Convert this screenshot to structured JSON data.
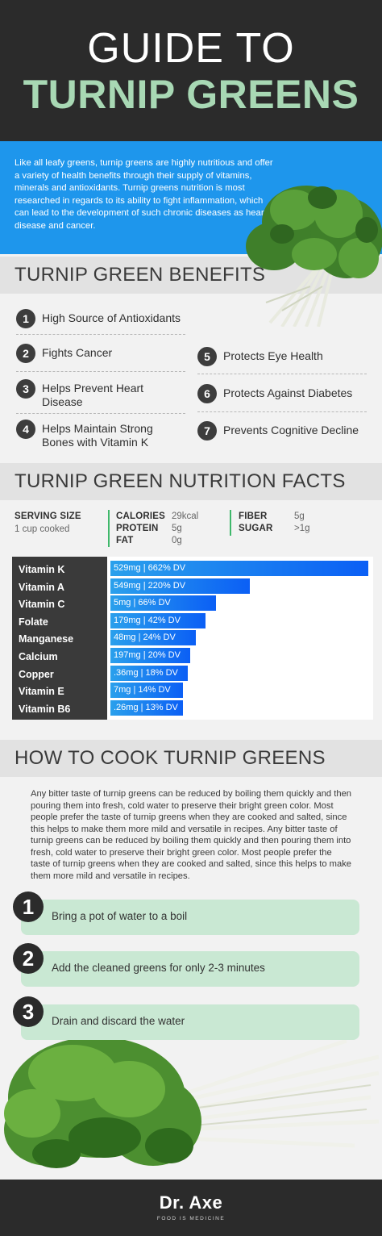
{
  "header": {
    "line1": "GUIDE TO",
    "line2": "TURNIP GREENS"
  },
  "intro": {
    "text": "Like all leafy greens, turnip greens are highly nutritious and offer a variety of health benefits through their supply of vitamins, minerals and antioxidants. Turnip greens nutrition is most researched in regards to its ability to fight inflammation, which can lead to the development of such chronic diseases as heart disease and cancer."
  },
  "benefits": {
    "title": "TURNIP GREEN BENEFITS",
    "items": [
      {
        "num": "1",
        "label": "High Source of Antioxidants"
      },
      {
        "num": "2",
        "label": "Fights Cancer"
      },
      {
        "num": "3",
        "label": "Helps Prevent Heart Disease"
      },
      {
        "num": "4",
        "label": "Helps Maintain Strong Bones with Vitamin K"
      },
      {
        "num": "5",
        "label": "Protects Eye Health"
      },
      {
        "num": "6",
        "label": "Protects Against Diabetes"
      },
      {
        "num": "7",
        "label": "Prevents Cognitive Decline"
      }
    ]
  },
  "nutrition": {
    "title": "TURNIP GREEN NUTRITION FACTS",
    "serving_label": "SERVING SIZE",
    "serving_value": "1 cup cooked",
    "facts": [
      {
        "label": "CALORIES",
        "value": "29kcal"
      },
      {
        "label": "PROTEIN",
        "value": "5g"
      },
      {
        "label": "FAT",
        "value": "0g"
      },
      {
        "label": "FIBER",
        "value": "5g"
      },
      {
        "label": "SUGAR",
        "value": ">1g"
      }
    ]
  },
  "chart_data": {
    "type": "bar",
    "orientation": "horizontal",
    "categories": [
      "Vitamin K",
      "Vitamin A",
      "Vitamin C",
      "Folate",
      "Manganese",
      "Calcium",
      "Copper",
      "Vitamin E",
      "Vitamin B6"
    ],
    "values": [
      662,
      220,
      66,
      42,
      24,
      20,
      18,
      14,
      13
    ],
    "bar_labels": [
      "529mg | 662% DV",
      "549mg | 220% DV",
      "5mg | 66% DV",
      "179mg | 42% DV",
      "48mg | 24% DV",
      "197mg | 20% DV",
      ".36mg | 18% DV",
      "7mg | 14% DV",
      ".26mg | 13% DV"
    ],
    "bar_fill_fraction": [
      1.0,
      0.54,
      0.41,
      0.37,
      0.33,
      0.31,
      0.3,
      0.28,
      0.28
    ],
    "colors": {
      "label_bg": "#3a3a3a",
      "bar_start": "#1e86f0",
      "bar_end": "#0b5ff5",
      "bar_pale": "#2aa0ec"
    }
  },
  "cook": {
    "title": "HOW TO COOK TURNIP GREENS",
    "text": "Any bitter taste of turnip greens can be reduced by boiling them quickly and then pouring them into fresh, cold water to preserve their bright green color. Most people prefer the taste of turnip greens when they are cooked and salted, since this helps to make them more mild and versatile in recipes. Any bitter taste of turnip greens can be reduced by boiling them quickly and then pouring them into fresh, cold water to preserve their bright green color. Most people prefer the taste of turnip greens when they are cooked and salted, since this helps to make them more mild and versatile in recipes.",
    "steps": [
      {
        "num": "1",
        "text": "Bring a pot of water to a boil"
      },
      {
        "num": "2",
        "text": "Add the cleaned greens for only 2-3 minutes"
      },
      {
        "num": "3",
        "text": "Drain and discard the water"
      }
    ]
  },
  "footer": {
    "brand": "Dr. Axe",
    "tagline": "FOOD IS MEDICINE"
  },
  "colors": {
    "header_bg": "#2b2b2b",
    "title_green": "#a8d8b4",
    "intro_blue": "#1e96ec",
    "step_green": "#c9e8d3"
  }
}
